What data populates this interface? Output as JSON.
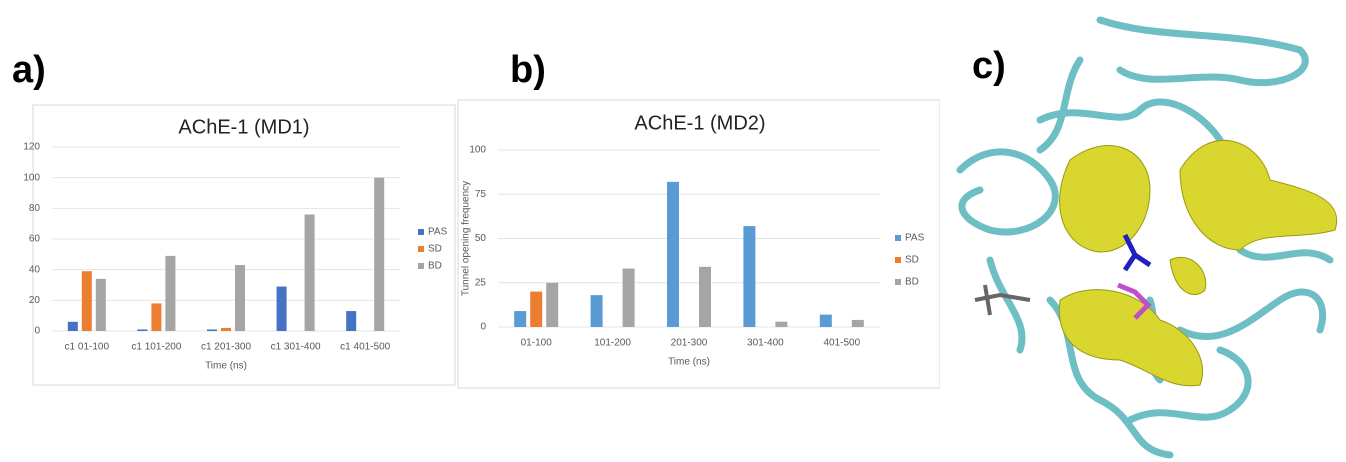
{
  "panel_labels": [
    "a)",
    "b)",
    "c)"
  ],
  "chart_data": [
    {
      "type": "bar",
      "title": "AChE-1 (MD1)",
      "x_label": "Time (ns)",
      "categories": [
        "c1 01-100",
        "c1 101-200",
        "c1 201-300",
        "c1 301-400",
        "c1 401-500"
      ],
      "series": [
        {
          "name": "PAS",
          "color": "#4472c4",
          "values": [
            6,
            1,
            1,
            29,
            13
          ]
        },
        {
          "name": "SD",
          "color": "#ed7d31",
          "values": [
            39,
            18,
            2,
            0,
            0
          ]
        },
        {
          "name": "BD",
          "color": "#a5a5a5",
          "values": [
            34,
            49,
            43,
            76,
            100
          ]
        }
      ],
      "ylim": [
        0,
        120
      ],
      "yticks": [
        0,
        20,
        40,
        60,
        80,
        100,
        120
      ],
      "grid": true,
      "legend": "right"
    },
    {
      "type": "bar",
      "title": "AChE-1 (MD2)",
      "x_label": "Time (ns)",
      "y_label": "Tunnel  opening frequency",
      "categories": [
        "01-100",
        "101-200",
        "201-300",
        "301-400",
        "401-500"
      ],
      "series": [
        {
          "name": "PAS",
          "color": "#5b9bd5",
          "values": [
            9,
            18,
            82,
            57,
            7
          ]
        },
        {
          "name": "SD",
          "color": "#ed7d31",
          "values": [
            20,
            0,
            0,
            0,
            0
          ]
        },
        {
          "name": "BD",
          "color": "#a5a5a5",
          "values": [
            25,
            33,
            34,
            3,
            4
          ]
        }
      ],
      "ylim": [
        0,
        100
      ],
      "yticks": [
        0,
        25,
        50,
        75,
        100
      ],
      "grid": true,
      "legend": "right"
    }
  ]
}
